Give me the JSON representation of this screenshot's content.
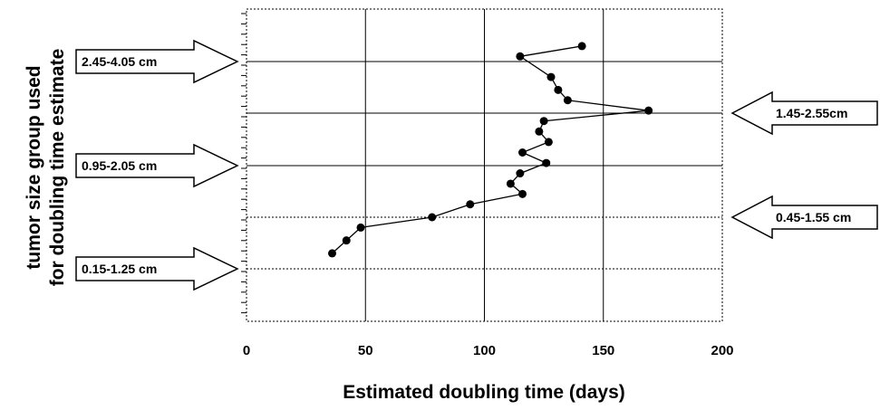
{
  "chart_data": {
    "type": "line",
    "title": "",
    "xlabel": "Estimated doubling time (days)",
    "ylabel_lines": [
      "tumor size group used",
      "for doubling time estimate"
    ],
    "xlim": [
      0,
      200
    ],
    "xticks": [
      0,
      50,
      100,
      150,
      200
    ],
    "grid": true,
    "series": [
      {
        "points": [
          {
            "x": 36,
            "y": 0.3
          },
          {
            "x": 42,
            "y": 0.55
          },
          {
            "x": 48,
            "y": 0.8
          },
          {
            "x": 78,
            "y": 1.0
          },
          {
            "x": 94,
            "y": 1.25
          },
          {
            "x": 116,
            "y": 1.45
          },
          {
            "x": 111,
            "y": 1.65
          },
          {
            "x": 115,
            "y": 1.85
          },
          {
            "x": 126,
            "y": 2.05
          },
          {
            "x": 116,
            "y": 2.25
          },
          {
            "x": 127,
            "y": 2.45
          },
          {
            "x": 123,
            "y": 2.65
          },
          {
            "x": 125,
            "y": 2.85
          },
          {
            "x": 169,
            "y": 3.05
          },
          {
            "x": 135,
            "y": 3.25
          },
          {
            "x": 131,
            "y": 3.45
          },
          {
            "x": 128,
            "y": 3.7
          },
          {
            "x": 115,
            "y": 4.1
          },
          {
            "x": 141,
            "y": 4.3
          }
        ]
      }
    ],
    "groups": [
      {
        "label": "2.45-4.05 cm",
        "side": "left",
        "row": 4
      },
      {
        "label": "1.45-2.55cm",
        "side": "right",
        "row": 3
      },
      {
        "label": "0.95-2.05 cm",
        "side": "left",
        "row": 2
      },
      {
        "label": "0.45-1.55 cm",
        "side": "right",
        "row": 1
      },
      {
        "label": "0.15-1.25 cm",
        "side": "left",
        "row": 0
      }
    ]
  }
}
